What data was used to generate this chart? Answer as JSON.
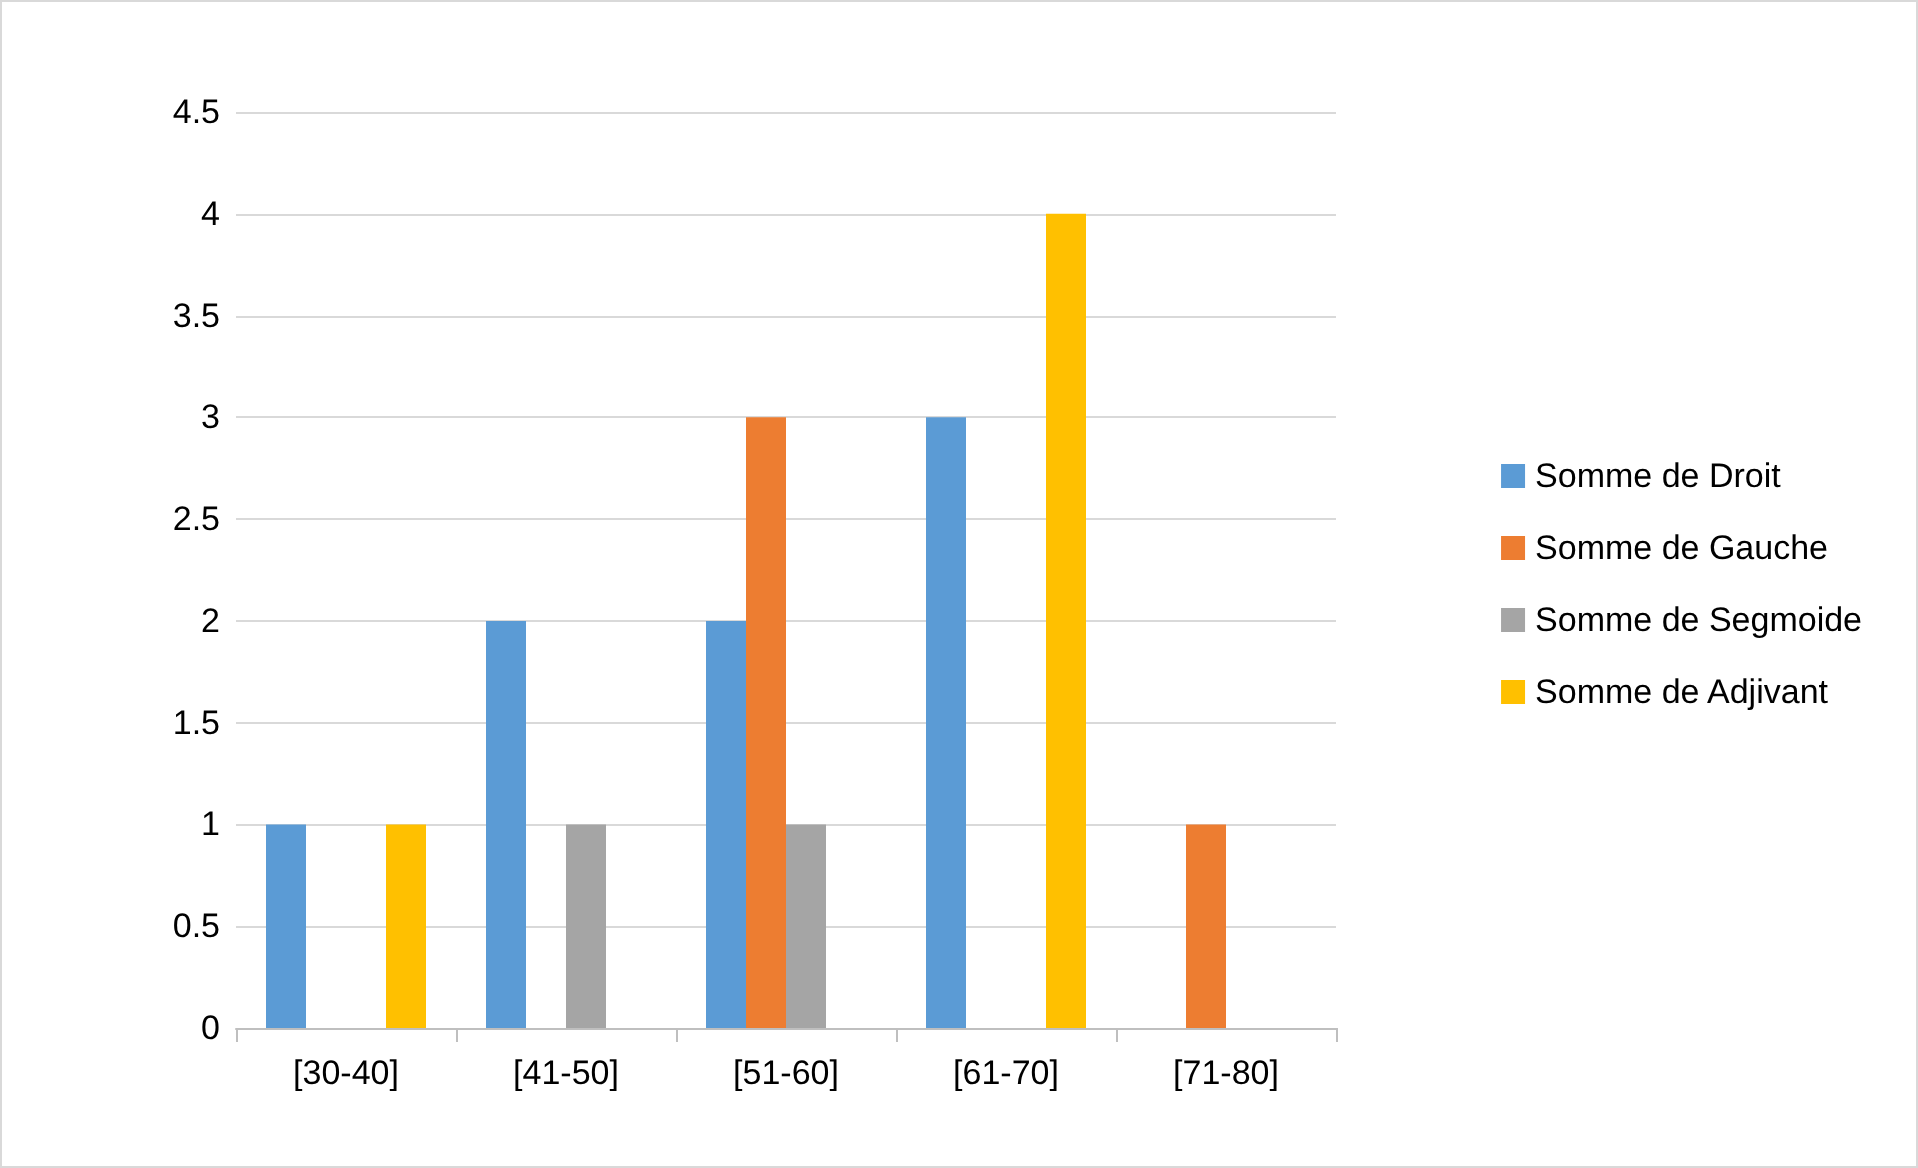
{
  "chart_data": {
    "type": "bar",
    "categories": [
      "[30-40]",
      "[41-50]",
      "[51-60]",
      "[61-70]",
      "[71-80]"
    ],
    "series": [
      {
        "name": "Somme de Droit",
        "color": "#5b9bd5",
        "values": [
          1,
          2,
          2,
          3,
          null
        ]
      },
      {
        "name": "Somme de Gauche",
        "color": "#ed7d31",
        "values": [
          null,
          null,
          3,
          null,
          1
        ]
      },
      {
        "name": "Somme de Segmoide",
        "color": "#a5a5a5",
        "values": [
          null,
          1,
          1,
          null,
          null
        ]
      },
      {
        "name": "Somme de Adjivant",
        "color": "#ffc000",
        "values": [
          1,
          null,
          null,
          4,
          null
        ]
      }
    ],
    "ylim": [
      0,
      4.5
    ],
    "yticks": [
      0,
      0.5,
      1,
      1.5,
      2,
      2.5,
      3,
      3.5,
      4,
      4.5
    ],
    "grid": "y",
    "legend": "right"
  }
}
